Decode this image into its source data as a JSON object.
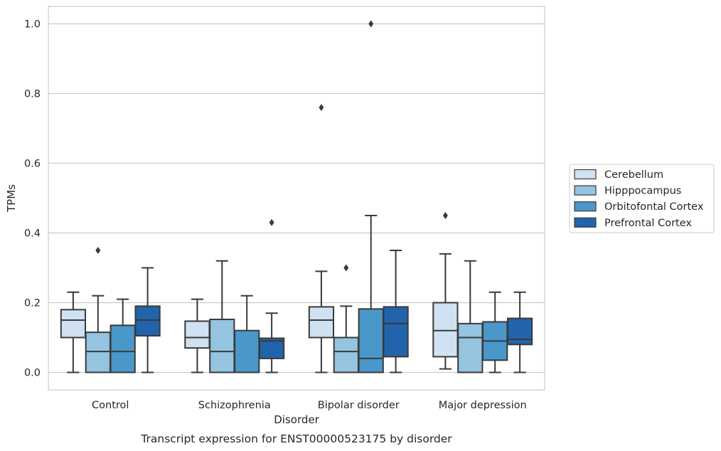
{
  "chart_data": {
    "type": "box",
    "title": "",
    "caption": "Transcript expression for ENST00000523175 by disorder",
    "xlabel": "Disorder",
    "ylabel": "TPMs",
    "ylim": [
      -0.05,
      1.05
    ],
    "yticks": [
      0.0,
      0.2,
      0.4,
      0.6,
      0.8,
      1.0
    ],
    "ytick_labels": [
      "0.0",
      "0.2",
      "0.4",
      "0.6",
      "0.8",
      "1.0"
    ],
    "grid": "horizontal",
    "legend_position": "right",
    "categories": [
      "Control",
      "Schizophrenia",
      "Bipolar disorder",
      "Major depression"
    ],
    "series": [
      {
        "name": "Cerebellum",
        "color": "#d0e1f2",
        "boxes": [
          {
            "whislo": 0.0,
            "q1": 0.1,
            "med": 0.15,
            "q3": 0.18,
            "whishi": 0.23,
            "fliers": []
          },
          {
            "whislo": 0.0,
            "q1": 0.07,
            "med": 0.1,
            "q3": 0.147,
            "whishi": 0.21,
            "fliers": []
          },
          {
            "whislo": 0.0,
            "q1": 0.1,
            "med": 0.15,
            "q3": 0.188,
            "whishi": 0.29,
            "fliers": [
              0.76
            ]
          },
          {
            "whislo": 0.01,
            "q1": 0.045,
            "med": 0.12,
            "q3": 0.2,
            "whishi": 0.34,
            "fliers": [
              0.45
            ]
          }
        ]
      },
      {
        "name": "Hipppocampus",
        "color": "#94c4df",
        "boxes": [
          {
            "whislo": 0.0,
            "q1": 0.0,
            "med": 0.06,
            "q3": 0.115,
            "whishi": 0.22,
            "fliers": [
              0.35
            ]
          },
          {
            "whislo": 0.0,
            "q1": 0.0,
            "med": 0.06,
            "q3": 0.152,
            "whishi": 0.32,
            "fliers": []
          },
          {
            "whislo": 0.0,
            "q1": 0.0,
            "med": 0.06,
            "q3": 0.1,
            "whishi": 0.19,
            "fliers": [
              0.3
            ]
          },
          {
            "whislo": 0.0,
            "q1": 0.0,
            "med": 0.1,
            "q3": 0.14,
            "whishi": 0.32,
            "fliers": []
          }
        ]
      },
      {
        "name": "Orbitofontal Cortex",
        "color": "#4a98c9",
        "boxes": [
          {
            "whislo": 0.0,
            "q1": 0.0,
            "med": 0.06,
            "q3": 0.135,
            "whishi": 0.21,
            "fliers": []
          },
          {
            "whislo": 0.0,
            "q1": 0.0,
            "med": 0.0,
            "q3": 0.12,
            "whishi": 0.22,
            "fliers": []
          },
          {
            "whislo": 0.0,
            "q1": 0.0,
            "med": 0.04,
            "q3": 0.182,
            "whishi": 0.45,
            "fliers": [
              1.0
            ]
          },
          {
            "whislo": 0.0,
            "q1": 0.035,
            "med": 0.09,
            "q3": 0.145,
            "whishi": 0.23,
            "fliers": []
          }
        ]
      },
      {
        "name": "Prefrontal Cortex",
        "color": "#2164ab",
        "boxes": [
          {
            "whislo": 0.0,
            "q1": 0.105,
            "med": 0.15,
            "q3": 0.19,
            "whishi": 0.3,
            "fliers": []
          },
          {
            "whislo": 0.0,
            "q1": 0.04,
            "med": 0.09,
            "q3": 0.098,
            "whishi": 0.17,
            "fliers": [
              0.43
            ]
          },
          {
            "whislo": 0.0,
            "q1": 0.045,
            "med": 0.14,
            "q3": 0.188,
            "whishi": 0.35,
            "fliers": []
          },
          {
            "whislo": 0.0,
            "q1": 0.08,
            "med": 0.095,
            "q3": 0.155,
            "whishi": 0.23,
            "fliers": []
          }
        ]
      }
    ]
  }
}
